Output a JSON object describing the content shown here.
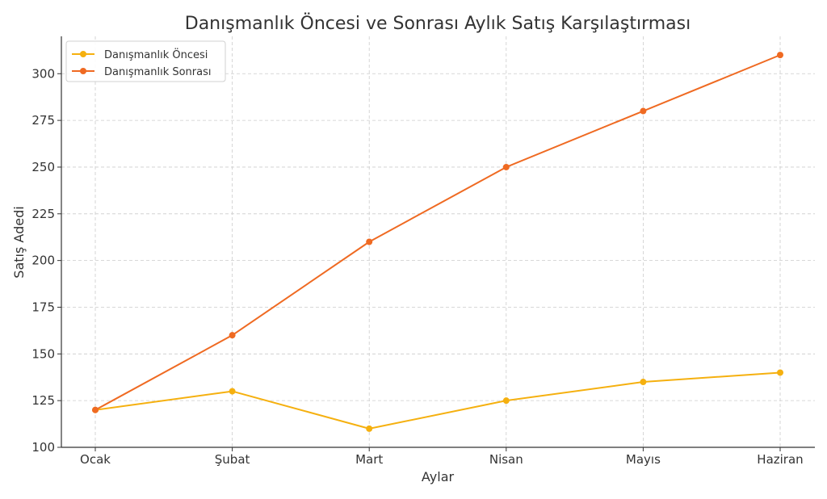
{
  "chart_data": {
    "type": "line",
    "title": "Danışmanlık Öncesi ve Sonrası Aylık Satış Karşılaştırması",
    "xlabel": "Aylar",
    "ylabel": "Satış Adedi",
    "categories": [
      "Ocak",
      "Şubat",
      "Mart",
      "Nisan",
      "Mayıs",
      "Haziran"
    ],
    "ylim": [
      100,
      320
    ],
    "yticks": [
      100,
      125,
      150,
      175,
      200,
      225,
      250,
      275,
      300
    ],
    "grid": true,
    "legend_position": "top-left",
    "series": [
      {
        "name": "Danışmanlık Öncesi",
        "color": "#f5b00f",
        "values": [
          120,
          130,
          110,
          125,
          135,
          140
        ]
      },
      {
        "name": "Danışmanlık Sonrası",
        "color": "#ef6a22",
        "values": [
          120,
          160,
          210,
          250,
          280,
          310
        ]
      }
    ]
  }
}
